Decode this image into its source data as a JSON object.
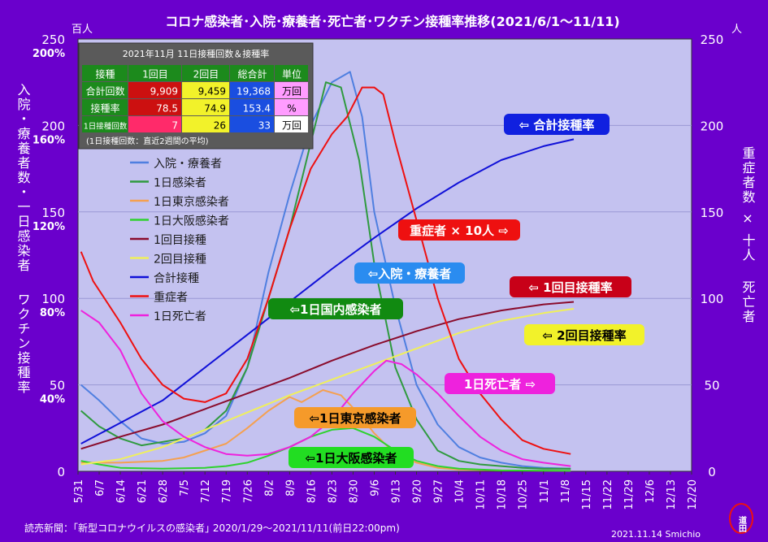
{
  "title": "コロナ感染者･入院･療養者･死亡者･ワクチン接種率推移(2021/6/1～11/11)",
  "left_unit": "百人",
  "right_unit": "人",
  "left_axis_label_1": "入院・療養者数・一日感染者",
  "left_axis_label_2": "ワクチン接種率",
  "right_axis_label_1": "重症者数 × 十人",
  "right_axis_label_2": "死亡者",
  "footer_source": "読売新聞：｢新型コロナウイルスの感染者｣ 2020/1/29～2021/11/11(前日22:00pm)",
  "footer_credit": "2021.11.14 Smichio",
  "stamp_text": "道田",
  "table": {
    "title": "2021年11月 11日接種回数＆接種率",
    "headers": [
      "接種",
      "1回目",
      "2回目",
      "総合計",
      "単位"
    ],
    "rows": [
      {
        "label": "合計回数",
        "c1": "9,909",
        "c2": "9,459",
        "c3": "19,368",
        "unit": "万回"
      },
      {
        "label": "接種率",
        "c1": "78.5",
        "c2": "74.9",
        "c3": "153.4",
        "unit": "%"
      },
      {
        "label": "1日接種回数",
        "c1": "7",
        "c2": "26",
        "c3": "33",
        "unit": "万回"
      }
    ],
    "note": "(1日接種回数：直近2週間の平均)"
  },
  "callouts": [
    {
      "text": "⇦ 合計接種率",
      "bg": "#1020e0",
      "fg": "#ffffff"
    },
    {
      "text": "重症者 × 10人 ⇨",
      "bg": "#ee1010",
      "fg": "#ffffff"
    },
    {
      "text": "⇦入院・療養者",
      "bg": "#2a8cf0",
      "fg": "#ffffff"
    },
    {
      "text": "⇦ 1回目接種率",
      "bg": "#c80018",
      "fg": "#ffffff"
    },
    {
      "text": "⇦1日国内感染者",
      "bg": "#118a11",
      "fg": "#ffffff"
    },
    {
      "text": "⇦ 2回目接種率",
      "bg": "#f2f22a",
      "fg": "#000000"
    },
    {
      "text": "1日死亡者 ⇨",
      "bg": "#ee22dd",
      "fg": "#ffffff"
    },
    {
      "text": "⇦1日東京感染者",
      "bg": "#f59a2a",
      "fg": "#000000"
    },
    {
      "text": "⇦1日大阪感染者",
      "bg": "#22dd22",
      "fg": "#000000"
    }
  ],
  "chart_data": {
    "type": "line",
    "x_start": "2021-05-31",
    "x_end": "2021-12-20",
    "x_tick_labels": [
      "5/31",
      "6/7",
      "6/14",
      "6/21",
      "6/28",
      "7/5",
      "7/12",
      "7/19",
      "7/26",
      "8/2",
      "8/9",
      "8/16",
      "8/23",
      "8/30",
      "9/6",
      "9/13",
      "9/20",
      "9/27",
      "10/4",
      "10/11",
      "10/18",
      "10/25",
      "11/1",
      "11/8",
      "11/15",
      "11/22",
      "11/29",
      "12/6",
      "12/13",
      "12/20"
    ],
    "y_left": {
      "min": 0,
      "max": 250,
      "ticks": [
        0,
        50,
        100,
        150,
        200,
        250
      ],
      "pct_ticks": [
        "40%",
        "80%",
        "120%",
        "160%",
        "200%"
      ]
    },
    "y_right": {
      "min": 0,
      "max": 250,
      "ticks": [
        0,
        50,
        100,
        150,
        200,
        250
      ]
    },
    "series": [
      {
        "name": "入院・療養者",
        "color": "#4f7fe0",
        "axis": "left",
        "points": [
          [
            "2021-06-01",
            50
          ],
          [
            "2021-06-07",
            41
          ],
          [
            "2021-06-14",
            29
          ],
          [
            "2021-06-21",
            19
          ],
          [
            "2021-06-28",
            16
          ],
          [
            "2021-07-05",
            17
          ],
          [
            "2021-07-12",
            22
          ],
          [
            "2021-07-19",
            32
          ],
          [
            "2021-07-26",
            60
          ],
          [
            "2021-08-02",
            115
          ],
          [
            "2021-08-09",
            160
          ],
          [
            "2021-08-16",
            200
          ],
          [
            "2021-08-23",
            225
          ],
          [
            "2021-08-29",
            231
          ],
          [
            "2021-09-02",
            205
          ],
          [
            "2021-09-06",
            150
          ],
          [
            "2021-09-13",
            95
          ],
          [
            "2021-09-20",
            50
          ],
          [
            "2021-09-27",
            27
          ],
          [
            "2021-10-04",
            14
          ],
          [
            "2021-10-11",
            8
          ],
          [
            "2021-10-18",
            5
          ],
          [
            "2021-10-25",
            3
          ],
          [
            "2021-11-01",
            2
          ],
          [
            "2021-11-10",
            1.5
          ]
        ]
      },
      {
        "name": "1日感染者",
        "color": "#2f9a3f",
        "axis": "left",
        "points": [
          [
            "2021-06-01",
            35
          ],
          [
            "2021-06-07",
            26
          ],
          [
            "2021-06-14",
            19
          ],
          [
            "2021-06-21",
            15
          ],
          [
            "2021-06-28",
            17
          ],
          [
            "2021-07-05",
            19
          ],
          [
            "2021-07-12",
            24
          ],
          [
            "2021-07-19",
            35
          ],
          [
            "2021-07-26",
            60
          ],
          [
            "2021-08-02",
            100
          ],
          [
            "2021-08-09",
            140
          ],
          [
            "2021-08-16",
            190
          ],
          [
            "2021-08-21",
            225
          ],
          [
            "2021-08-26",
            222
          ],
          [
            "2021-09-01",
            180
          ],
          [
            "2021-09-06",
            120
          ],
          [
            "2021-09-13",
            60
          ],
          [
            "2021-09-20",
            30
          ],
          [
            "2021-09-27",
            12
          ],
          [
            "2021-10-04",
            6
          ],
          [
            "2021-10-11",
            4
          ],
          [
            "2021-10-18",
            3
          ],
          [
            "2021-10-25",
            2
          ],
          [
            "2021-11-01",
            1.5
          ],
          [
            "2021-11-10",
            1.5
          ]
        ]
      },
      {
        "name": "1日東京感染者",
        "color": "#f5a050",
        "axis": "left",
        "points": [
          [
            "2021-06-01",
            5
          ],
          [
            "2021-06-14",
            5
          ],
          [
            "2021-06-28",
            6
          ],
          [
            "2021-07-05",
            8
          ],
          [
            "2021-07-12",
            12
          ],
          [
            "2021-07-19",
            16
          ],
          [
            "2021-07-26",
            25
          ],
          [
            "2021-08-02",
            35
          ],
          [
            "2021-08-09",
            43
          ],
          [
            "2021-08-13",
            40
          ],
          [
            "2021-08-20",
            47
          ],
          [
            "2021-08-26",
            44
          ],
          [
            "2021-09-01",
            33
          ],
          [
            "2021-09-06",
            22
          ],
          [
            "2021-09-13",
            10
          ],
          [
            "2021-09-20",
            5
          ],
          [
            "2021-09-27",
            2
          ],
          [
            "2021-10-04",
            1
          ],
          [
            "2021-10-18",
            0.5
          ],
          [
            "2021-11-10",
            0.3
          ]
        ]
      },
      {
        "name": "1日大阪感染者",
        "color": "#2ed22e",
        "axis": "left",
        "points": [
          [
            "2021-06-01",
            6
          ],
          [
            "2021-06-07",
            4
          ],
          [
            "2021-06-14",
            2
          ],
          [
            "2021-06-28",
            1.5
          ],
          [
            "2021-07-12",
            2
          ],
          [
            "2021-07-19",
            3
          ],
          [
            "2021-07-26",
            5
          ],
          [
            "2021-08-02",
            9
          ],
          [
            "2021-08-09",
            14
          ],
          [
            "2021-08-16",
            20
          ],
          [
            "2021-08-23",
            24
          ],
          [
            "2021-08-30",
            25
          ],
          [
            "2021-09-06",
            20
          ],
          [
            "2021-09-13",
            12
          ],
          [
            "2021-09-20",
            6
          ],
          [
            "2021-09-27",
            3
          ],
          [
            "2021-10-04",
            1.5
          ],
          [
            "2021-10-18",
            0.5
          ],
          [
            "2021-11-10",
            0.3
          ]
        ]
      },
      {
        "name": "1回目接種",
        "color": "#8a0c2c",
        "axis": "left",
        "points": [
          [
            "2021-06-01",
            13
          ],
          [
            "2021-06-14",
            20
          ],
          [
            "2021-06-28",
            27
          ],
          [
            "2021-07-12",
            36
          ],
          [
            "2021-07-26",
            45
          ],
          [
            "2021-08-09",
            54
          ],
          [
            "2021-08-23",
            64
          ],
          [
            "2021-09-06",
            73
          ],
          [
            "2021-09-20",
            81
          ],
          [
            "2021-10-04",
            88
          ],
          [
            "2021-10-18",
            93
          ],
          [
            "2021-11-01",
            96.5
          ],
          [
            "2021-11-11",
            98
          ]
        ]
      },
      {
        "name": "2回目接種",
        "color": "#f0f05a",
        "axis": "left",
        "points": [
          [
            "2021-06-01",
            4
          ],
          [
            "2021-06-14",
            7
          ],
          [
            "2021-06-28",
            14
          ],
          [
            "2021-07-12",
            24
          ],
          [
            "2021-07-26",
            34
          ],
          [
            "2021-08-09",
            44
          ],
          [
            "2021-08-23",
            53
          ],
          [
            "2021-09-06",
            62
          ],
          [
            "2021-09-20",
            71
          ],
          [
            "2021-10-04",
            80
          ],
          [
            "2021-10-18",
            87
          ],
          [
            "2021-11-01",
            91.5
          ],
          [
            "2021-11-11",
            94
          ]
        ]
      },
      {
        "name": "合計接種",
        "color": "#1010d8",
        "axis": "left",
        "points": [
          [
            "2021-06-01",
            16
          ],
          [
            "2021-06-14",
            28
          ],
          [
            "2021-06-28",
            41
          ],
          [
            "2021-07-12",
            60
          ],
          [
            "2021-07-26",
            79
          ],
          [
            "2021-08-09",
            98
          ],
          [
            "2021-08-23",
            117
          ],
          [
            "2021-09-06",
            135
          ],
          [
            "2021-09-20",
            152
          ],
          [
            "2021-10-04",
            167
          ],
          [
            "2021-10-18",
            180
          ],
          [
            "2021-11-01",
            188
          ],
          [
            "2021-11-11",
            192
          ]
        ]
      },
      {
        "name": "重症者",
        "color": "#ee1010",
        "axis": "right",
        "points": [
          [
            "2021-06-01",
            127
          ],
          [
            "2021-06-05",
            110
          ],
          [
            "2021-06-14",
            86
          ],
          [
            "2021-06-21",
            65
          ],
          [
            "2021-06-28",
            50
          ],
          [
            "2021-07-05",
            42
          ],
          [
            "2021-07-12",
            40
          ],
          [
            "2021-07-19",
            45
          ],
          [
            "2021-07-26",
            65
          ],
          [
            "2021-08-02",
            100
          ],
          [
            "2021-08-09",
            140
          ],
          [
            "2021-08-16",
            175
          ],
          [
            "2021-08-23",
            195
          ],
          [
            "2021-08-28",
            205
          ],
          [
            "2021-09-02",
            222
          ],
          [
            "2021-09-06",
            222
          ],
          [
            "2021-09-09",
            218
          ],
          [
            "2021-09-13",
            190
          ],
          [
            "2021-09-20",
            145
          ],
          [
            "2021-09-27",
            100
          ],
          [
            "2021-10-04",
            65
          ],
          [
            "2021-10-11",
            45
          ],
          [
            "2021-10-18",
            30
          ],
          [
            "2021-10-25",
            18
          ],
          [
            "2021-11-01",
            13
          ],
          [
            "2021-11-10",
            10
          ]
        ]
      },
      {
        "name": "1日死亡者",
        "color": "#ee22dd",
        "axis": "right",
        "points": [
          [
            "2021-06-01",
            93
          ],
          [
            "2021-06-07",
            86
          ],
          [
            "2021-06-14",
            70
          ],
          [
            "2021-06-21",
            45
          ],
          [
            "2021-06-28",
            29
          ],
          [
            "2021-07-05",
            20
          ],
          [
            "2021-07-12",
            14
          ],
          [
            "2021-07-19",
            10
          ],
          [
            "2021-07-26",
            9
          ],
          [
            "2021-08-02",
            10
          ],
          [
            "2021-08-09",
            14
          ],
          [
            "2021-08-16",
            20
          ],
          [
            "2021-08-23",
            30
          ],
          [
            "2021-08-30",
            45
          ],
          [
            "2021-09-06",
            58
          ],
          [
            "2021-09-10",
            64
          ],
          [
            "2021-09-15",
            62
          ],
          [
            "2021-09-20",
            56
          ],
          [
            "2021-09-27",
            45
          ],
          [
            "2021-10-04",
            32
          ],
          [
            "2021-10-11",
            20
          ],
          [
            "2021-10-18",
            12
          ],
          [
            "2021-10-25",
            7
          ],
          [
            "2021-11-01",
            5
          ],
          [
            "2021-11-10",
            3
          ]
        ]
      }
    ]
  }
}
